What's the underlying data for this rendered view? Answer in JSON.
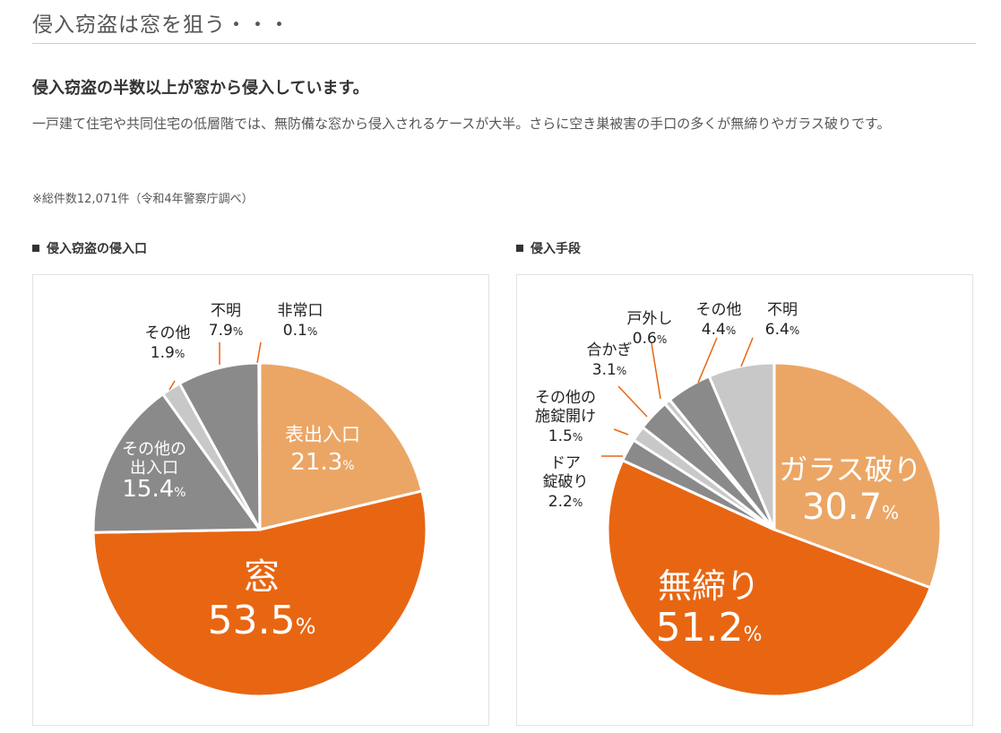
{
  "header": {
    "title": "侵入窃盗は窓を狙う・・・"
  },
  "intro": {
    "lead": "侵入窃盗の半数以上が窓から侵入しています。",
    "body": "一戸建て住宅や共同住宅の低層階では、無防備な窓から侵入されるケースが大半。さらに空き巣被害の手口の多くが無締りやガラス破りです。",
    "note": "※総件数12,071件（令和4年警察庁調べ）"
  },
  "colors": {
    "orange": "#e86612",
    "light_orange": "#eba665",
    "gray": "#8a8a8a",
    "light_gray": "#c8c8c8",
    "leader": "#e86612"
  },
  "chart_data": [
    {
      "type": "pie",
      "title": "侵入窃盗の侵入口",
      "unit": "%",
      "slices": [
        {
          "label": [
            "表出入口"
          ],
          "value": 21.3,
          "color": "#eba665",
          "label_pos": "inside"
        },
        {
          "label": [
            "窓"
          ],
          "value": 53.5,
          "color": "#e86612",
          "label_pos": "inside"
        },
        {
          "label": [
            "その他の",
            "出入口"
          ],
          "value": 15.4,
          "color": "#8a8a8a",
          "label_pos": "inside"
        },
        {
          "label": [
            "その他"
          ],
          "value": 1.9,
          "color": "#c8c8c8",
          "label_pos": "outside"
        },
        {
          "label": [
            "不明"
          ],
          "value": 7.9,
          "color": "#8a8a8a",
          "label_pos": "outside"
        },
        {
          "label": [
            "非常口"
          ],
          "value": 0.1,
          "color": "#c8c8c8",
          "label_pos": "outside"
        }
      ]
    },
    {
      "type": "pie",
      "title": "侵入手段",
      "unit": "%",
      "slices": [
        {
          "label": [
            "ガラス破り"
          ],
          "value": 30.7,
          "color": "#eba665",
          "label_pos": "inside"
        },
        {
          "label": [
            "無締り"
          ],
          "value": 51.2,
          "color": "#e86612",
          "label_pos": "inside"
        },
        {
          "label": [
            "ドア",
            "錠破り"
          ],
          "value": 2.2,
          "color": "#8a8a8a",
          "label_pos": "outside"
        },
        {
          "label": [
            "その他の",
            "施錠開け"
          ],
          "value": 1.5,
          "color": "#c8c8c8",
          "label_pos": "outside"
        },
        {
          "label": [
            "合かぎ"
          ],
          "value": 3.1,
          "color": "#8a8a8a",
          "label_pos": "outside"
        },
        {
          "label": [
            "戸外し"
          ],
          "value": 0.6,
          "color": "#c8c8c8",
          "label_pos": "outside"
        },
        {
          "label": [
            "その他"
          ],
          "value": 4.4,
          "color": "#8a8a8a",
          "label_pos": "outside"
        },
        {
          "label": [
            "不明"
          ],
          "value": 6.4,
          "color": "#c8c8c8",
          "label_pos": "outside"
        }
      ]
    }
  ]
}
